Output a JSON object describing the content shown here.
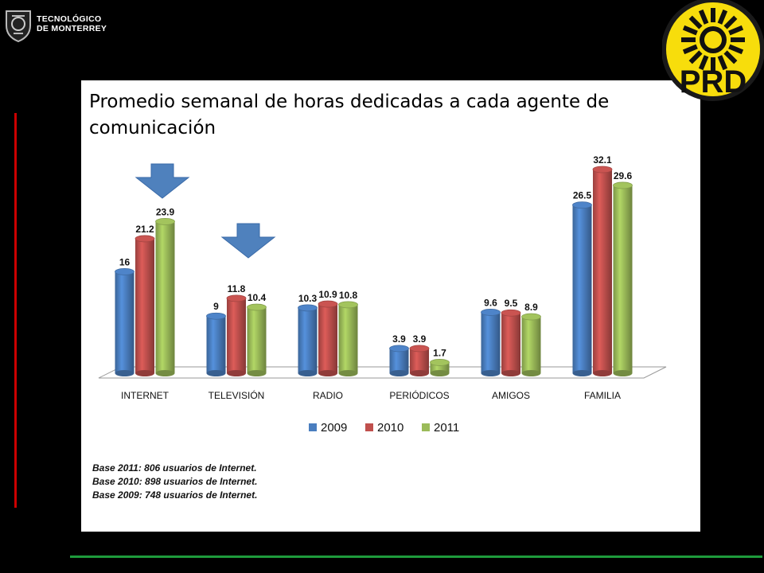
{
  "header": {
    "logo_line1": "TECNOLÓGICO",
    "logo_line2": "DE MONTERREY"
  },
  "party_logo": {
    "text": "PRD",
    "colors": {
      "yellow": "#f7dd0c",
      "black": "#111111"
    }
  },
  "chart_data": {
    "type": "bar",
    "title": "Promedio semanal de horas dedicadas a cada agente de comunicación",
    "categories": [
      "INTERNET",
      "TELEVISIÓN",
      "RADIO",
      "PERIÓDICOS",
      "AMIGOS",
      "FAMILIA"
    ],
    "series": [
      {
        "name": "2009",
        "color": "#4a7ebf",
        "values": [
          16,
          9,
          10.3,
          3.9,
          9.6,
          26.5
        ],
        "labels": [
          "16",
          "9",
          "10.3",
          "3.9",
          "9.6",
          "26.5"
        ]
      },
      {
        "name": "2010",
        "color": "#c0504d",
        "values": [
          21.2,
          11.8,
          10.9,
          3.9,
          9.5,
          32.1
        ],
        "labels": [
          "21.2",
          "11.8",
          "10.9",
          "3.9",
          "9.5",
          "32.1"
        ]
      },
      {
        "name": "2011",
        "color": "#9bbb59",
        "values": [
          23.9,
          10.4,
          10.8,
          1.7,
          8.9,
          29.6
        ],
        "labels": [
          "23.9",
          "10.4",
          "10.8",
          "1.7",
          "8.9",
          "29.6"
        ]
      }
    ],
    "ylim": [
      0,
      32.1
    ],
    "grid": false,
    "legend_position": "bottom",
    "arrows_over": [
      "INTERNET",
      "TELEVISIÓN"
    ],
    "arrow_color": "#4f81bd"
  },
  "notes": [
    "Base 2011:  806  usuarios de Internet.",
    "Base 2010:  898  usuarios de Internet.",
    "Base 2009:  748  usuarios de Internet."
  ]
}
